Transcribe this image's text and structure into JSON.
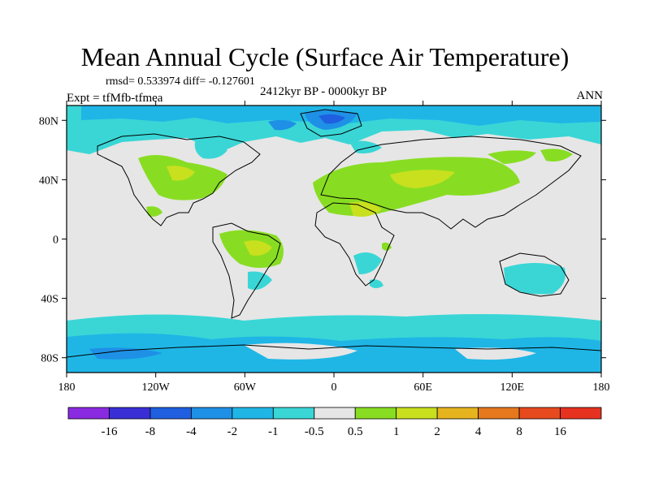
{
  "title": "Mean Annual Cycle (Surface Air Temperature)",
  "stats": "rmsd= 0.533974  diff= -0.127601",
  "subtitle": "2412kyr BP - 0000kyr BP",
  "experiment": "Expt = tfMfb-tfmea",
  "season": "ANN",
  "axes": {
    "lat_ticks": [
      {
        "label": "80N",
        "value": 80
      },
      {
        "label": "40N",
        "value": 40
      },
      {
        "label": "0",
        "value": 0
      },
      {
        "label": "40S",
        "value": -40
      },
      {
        "label": "80S",
        "value": -80
      }
    ],
    "lon_ticks": [
      {
        "label": "180",
        "value": -180
      },
      {
        "label": "120W",
        "value": -120
      },
      {
        "label": "60W",
        "value": -60
      },
      {
        "label": "0",
        "value": 0
      },
      {
        "label": "60E",
        "value": 60
      },
      {
        "label": "120E",
        "value": 120
      },
      {
        "label": "180",
        "value": 180
      }
    ],
    "lat_range": [
      -90,
      90
    ],
    "lon_range": [
      -180,
      180
    ]
  },
  "colorbar": {
    "labels": [
      "-16",
      "-8",
      "-4",
      "-2",
      "-1",
      "-0.5",
      "0.5",
      "1",
      "2",
      "4",
      "8",
      "16"
    ],
    "colors": [
      "#8a2be2",
      "#3a2fd6",
      "#1f5fe0",
      "#1e90e6",
      "#1fb6e6",
      "#3ad6d6",
      "#e6e6e6",
      "#88dd22",
      "#c8e01e",
      "#e6b41e",
      "#e6781e",
      "#e64a1e",
      "#e6321e"
    ]
  },
  "palette": {
    "ocean_bg": "#e6e6e6",
    "cyan": "#3ad6d6",
    "light_blue": "#1fb6e6",
    "blue": "#1e90e6",
    "dark_blue": "#1f5fe0",
    "green": "#88dd22",
    "yellow_green": "#c8e01e"
  }
}
